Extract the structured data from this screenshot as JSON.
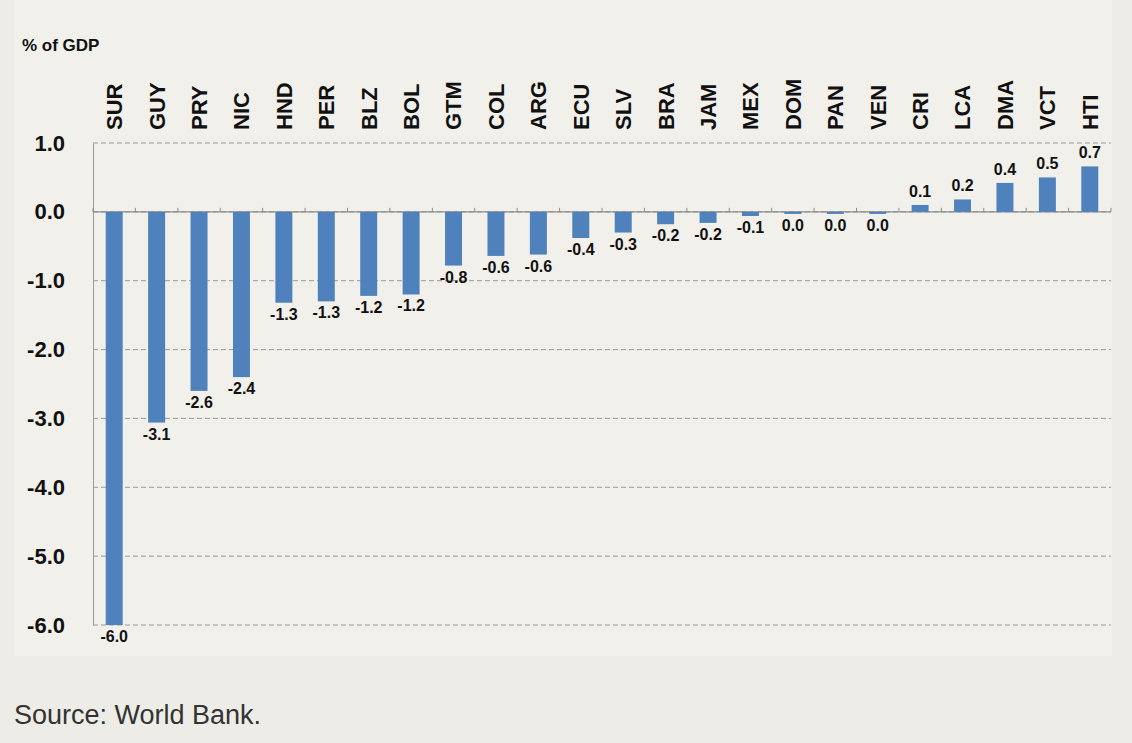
{
  "chart_data": {
    "type": "bar",
    "y_label": "% of GDP",
    "source": "Source: World Bank.",
    "categories": [
      "SUR",
      "GUY",
      "PRY",
      "NIC",
      "HND",
      "PER",
      "BLZ",
      "BOL",
      "GTM",
      "COL",
      "ARG",
      "ECU",
      "SLV",
      "BRA",
      "JAM",
      "MEX",
      "DOM",
      "PAN",
      "VEN",
      "CRI",
      "LCA",
      "DMA",
      "VCT",
      "HTI"
    ],
    "values": [
      -6.0,
      -3.06,
      -2.6,
      -2.4,
      -1.32,
      -1.3,
      -1.22,
      -1.2,
      -0.78,
      -0.64,
      -0.62,
      -0.38,
      -0.3,
      -0.18,
      -0.16,
      -0.06,
      -0.03,
      -0.03,
      -0.03,
      0.1,
      0.18,
      0.42,
      0.5,
      0.66
    ],
    "value_labels": [
      "-6.0",
      "-3.1",
      "-2.6",
      "-2.4",
      "-1.3",
      "-1.3",
      "-1.2",
      "-1.2",
      "-0.8",
      "-0.6",
      "-0.6",
      "-0.4",
      "-0.3",
      "-0.2",
      "-0.2",
      "-0.1",
      "0.0",
      "0.0",
      "0.0",
      "0.1",
      "0.2",
      "0.4",
      "0.5",
      "0.7"
    ],
    "color": "#4f81bd",
    "ylim": [
      -6,
      1
    ],
    "yticks": [
      {
        "value": -6,
        "label": "-6.0"
      },
      {
        "value": -5,
        "label": "-5.0"
      },
      {
        "value": -4,
        "label": "-4.0"
      },
      {
        "value": -3,
        "label": "-3.0"
      },
      {
        "value": -2,
        "label": "-2.0"
      },
      {
        "value": -1,
        "label": "-1.0"
      },
      {
        "value": 0,
        "label": "0.0"
      },
      {
        "value": 1,
        "label": "1.0"
      }
    ],
    "grid": true,
    "data_labels": true
  }
}
